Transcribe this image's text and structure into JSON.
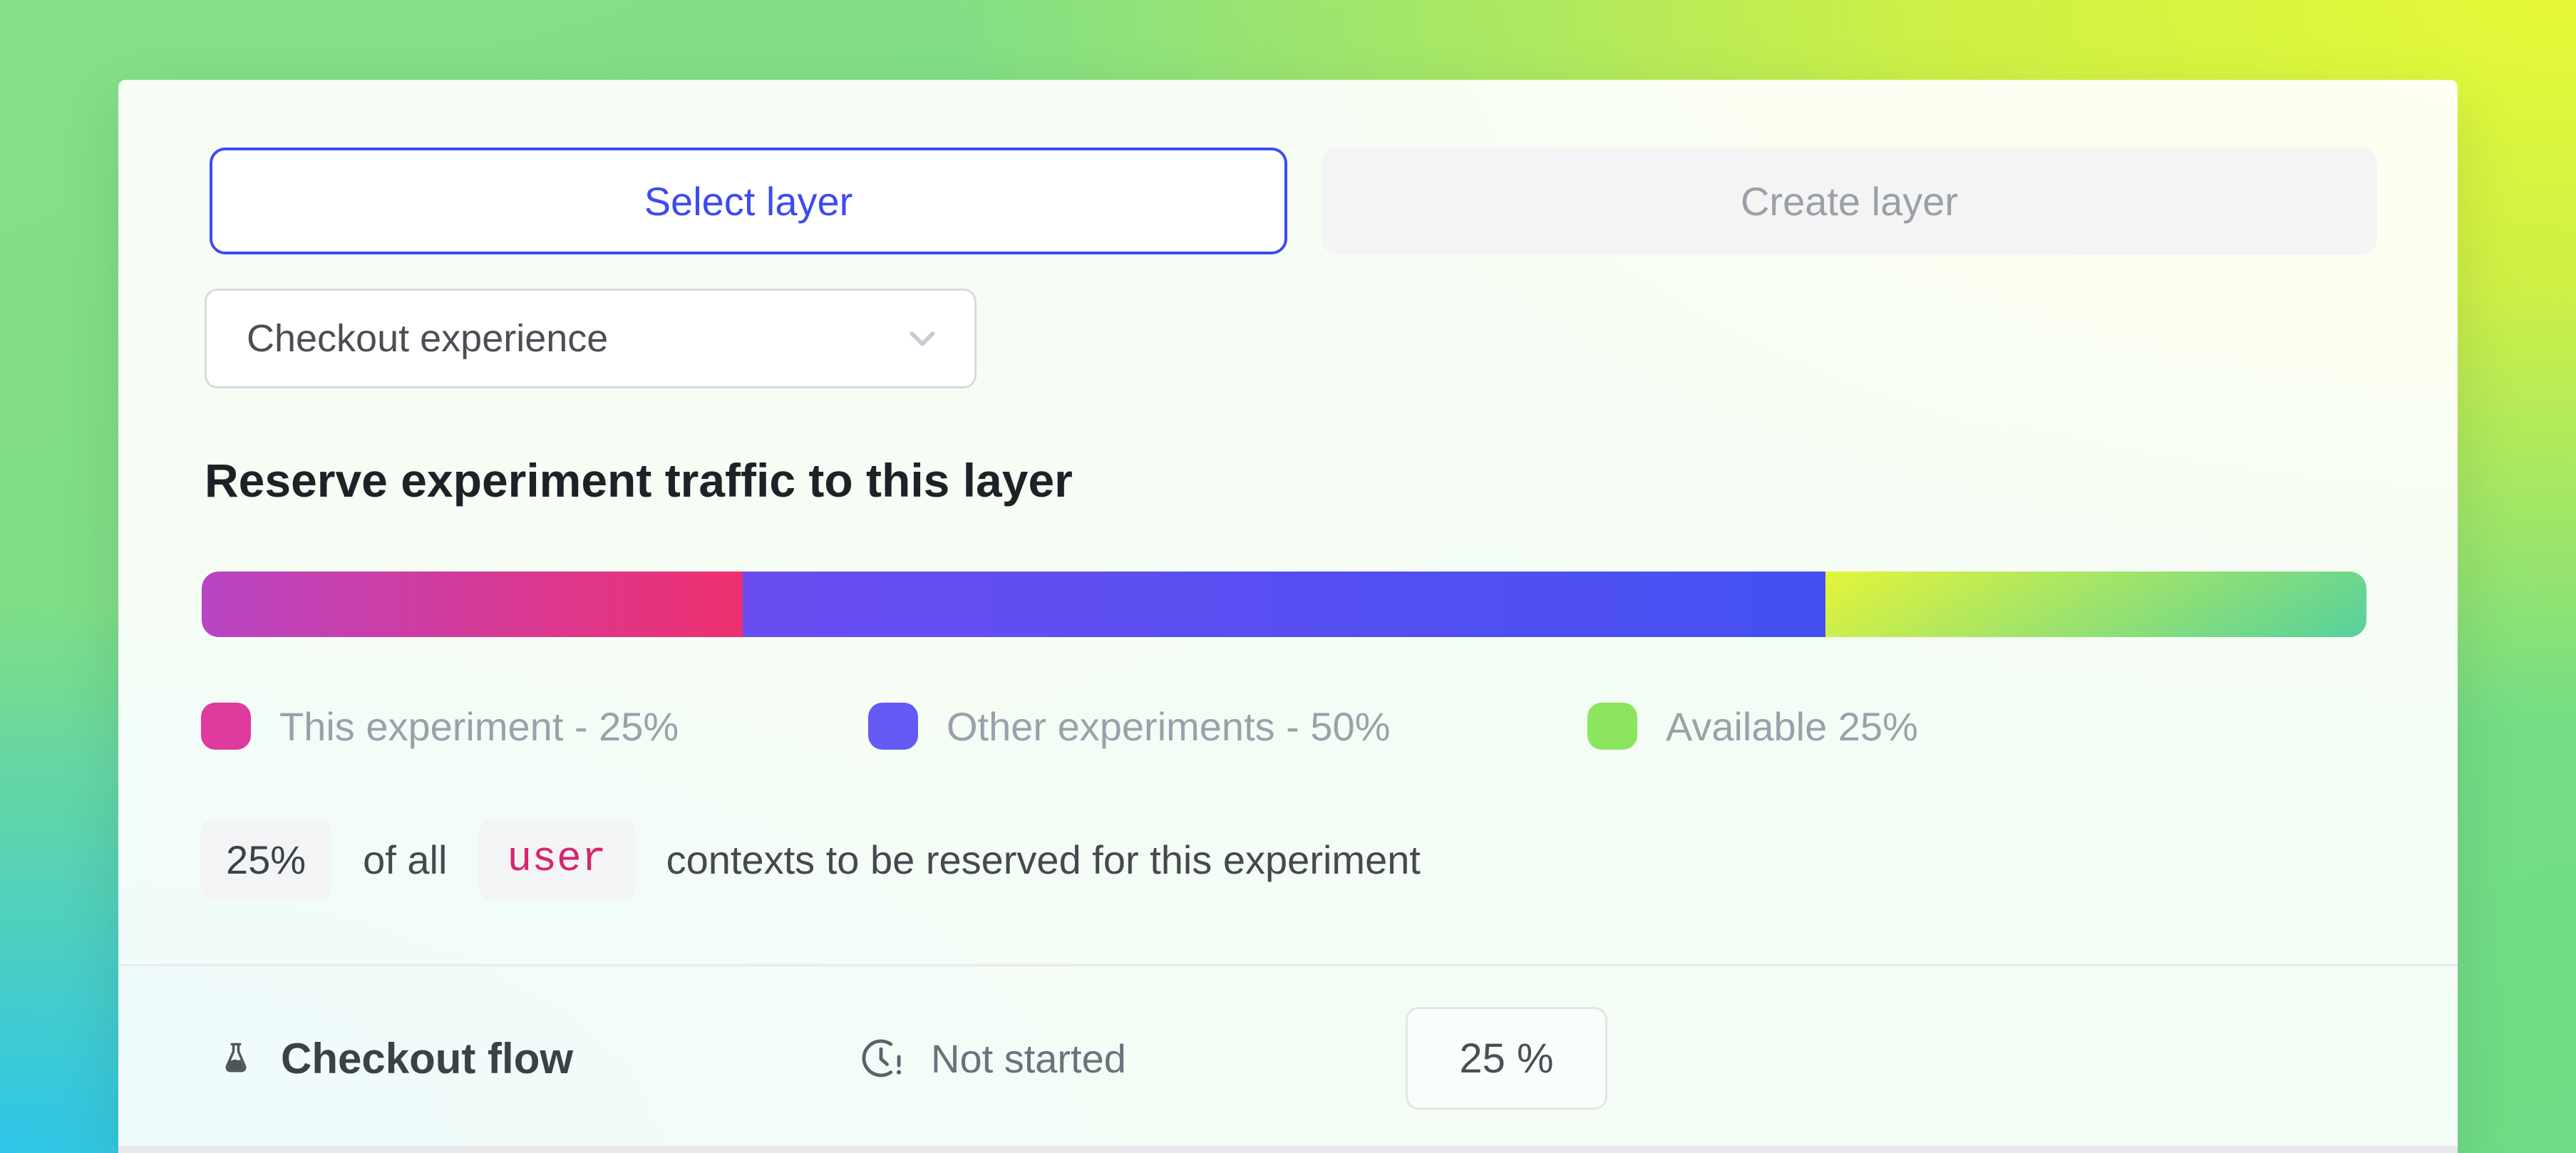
{
  "layer_tabs": {
    "select": "Select layer",
    "create": "Create layer"
  },
  "layer_dropdown": {
    "value": "Checkout experience"
  },
  "traffic_section": {
    "heading": "Reserve experiment traffic to this layer",
    "bar_segments": [
      {
        "id": "this-experiment",
        "label": "This experiment - 25%",
        "percent": 25,
        "gradient_angle": "90deg",
        "color_start": "#b845c3",
        "color_end": "#ee3070",
        "swatch": "#df3a9e"
      },
      {
        "id": "other-experiments",
        "label": "Other experiments - 50%",
        "percent": 50,
        "gradient_angle": "90deg",
        "color_start": "#6a4df1",
        "color_end": "#4450f1",
        "swatch": "#655af6"
      },
      {
        "id": "available",
        "label": "Available 25%",
        "percent": 25,
        "gradient_angle": "150deg",
        "color_start": "#e4f43a",
        "color_end": "#55d19e",
        "swatch": "#8ce55e"
      }
    ],
    "sentence": {
      "pct": "25%",
      "prefix": "of all",
      "unit": "user",
      "suffix": "contexts to be reserved for this experiment"
    }
  },
  "experiment_row": {
    "name": "Checkout flow",
    "status": "Not started",
    "allocation": "25 %"
  },
  "colors": {
    "accent_blue": "#3b4bf2",
    "unit_code_pink": "#d6246e",
    "background_top_right": "#e6f937",
    "background_bottom_left": "#2ec5e8",
    "background_green": "#7edd8d"
  }
}
